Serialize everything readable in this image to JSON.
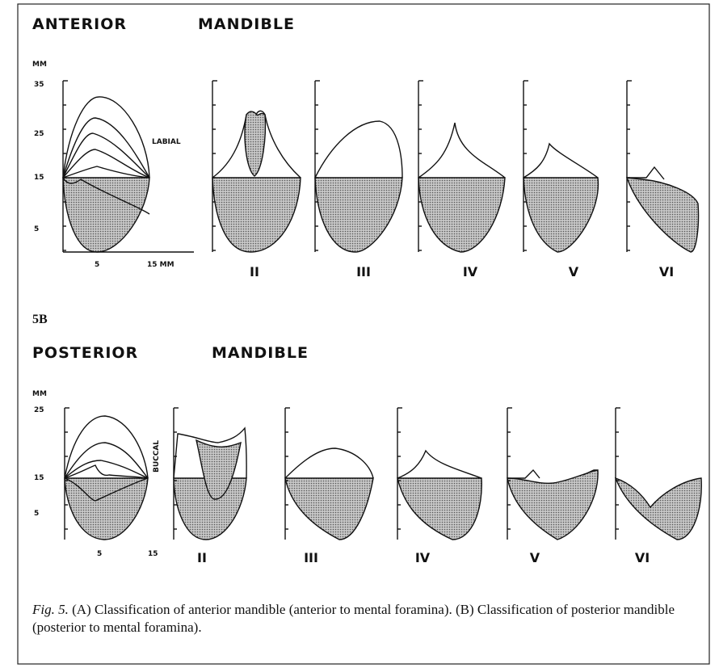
{
  "panel_a": {
    "title_left": "ANTERIOR",
    "title_right": "MANDIBLE",
    "unit": "MM",
    "yticks": [
      "35",
      "25",
      "15",
      "5"
    ],
    "side_label": "LABIAL",
    "xticks": [
      "5",
      "15 MM"
    ],
    "classes": [
      "II",
      "III",
      "IV",
      "V",
      "VI"
    ]
  },
  "panel_b": {
    "label": "5B",
    "title_left": "POSTERIOR",
    "title_right": "MANDIBLE",
    "unit": "MM",
    "yticks": [
      "25",
      "15",
      "5"
    ],
    "side_label": "BUCCAL",
    "xticks": [
      "5",
      "15"
    ],
    "classes": [
      "II",
      "III",
      "IV",
      "V",
      "VI"
    ]
  },
  "caption": {
    "figure": "Fig. 5.",
    "text": "(A) Classification of anterior mandible (anterior to mental foramina). (B) Classification of posterior mandible (posterior to mental foramina)."
  }
}
